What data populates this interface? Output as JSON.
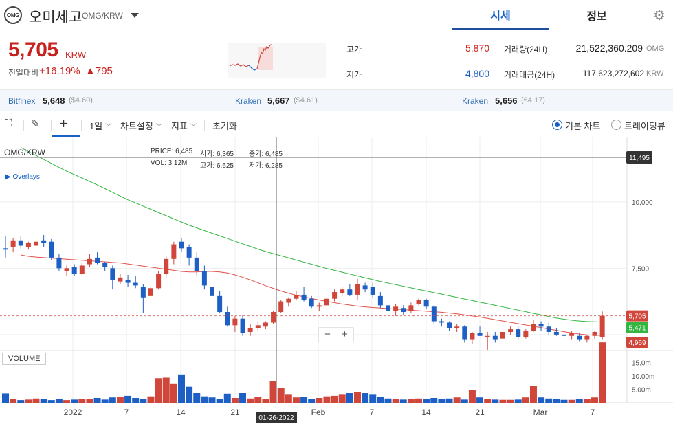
{
  "header": {
    "logo_text": "OMG",
    "coin_name": "오미세고",
    "pair": "OMG/KRW",
    "tabs": [
      {
        "label": "시세"
      },
      {
        "label": "정보"
      }
    ]
  },
  "summary": {
    "price": "5,705",
    "unit": "KRW",
    "change_label": "전일대비",
    "change_pct": "+16.19%",
    "change_abs": "▲795",
    "high_label": "고가",
    "high": "5,870",
    "low_label": "저가",
    "low": "4,800",
    "volume_label": "거래량(24H)",
    "volume": "21,522,360.209",
    "volume_unit": "OMG",
    "amount_label": "거래대금(24H)",
    "amount": "117,623,272,602",
    "amount_unit": "KRW"
  },
  "exchanges": [
    {
      "name": "Bitfinex",
      "price": "5,648",
      "usd": "($4.60)"
    },
    {
      "name": "Kraken",
      "price": "5,667",
      "usd": "($4.61)"
    },
    {
      "name": "Kraken",
      "price": "5,656",
      "usd": "(€4.17)"
    }
  ],
  "toolbar": {
    "interval": "1일",
    "chart_settings": "차트설정",
    "indicators": "지표",
    "reset": "초기화",
    "basic_chart": "기본 차트",
    "trading_view": "트레이딩뷰"
  },
  "chart": {
    "symbol": "OMG/KRW",
    "overlays_label": "Overlays",
    "volume_label": "VOLUME",
    "info": {
      "price_label": "PRICE:",
      "price": "6,485",
      "open_label": "시가:",
      "open": "6,365",
      "close_label": "종가:",
      "close": "6,485",
      "vol_label": "VOL:",
      "vol": "3.12M",
      "high_label": "고가:",
      "high": "6,625",
      "low_label": "저가:",
      "low": "6,285"
    },
    "crosshair_price": "11,495",
    "crosshair_date": "01-26-2022",
    "price_ticks": [
      "10,000",
      "7,500"
    ],
    "volume_ticks": [
      "15.0m",
      "10.00m",
      "5.00m"
    ],
    "x_ticks": [
      "2022",
      "7",
      "14",
      "21",
      "Feb",
      "7",
      "14",
      "21",
      "Mar",
      "7"
    ],
    "last_price_label": "5,705",
    "ma_long_label": "5,471",
    "ma_short_label": "4,969",
    "zoom_out": "−",
    "zoom_in": "+",
    "colors": {
      "up": "#d0463b",
      "down": "#1d5fc4",
      "ma_long": "#33b540",
      "ma_short": "#e0504a"
    }
  },
  "chart_data": {
    "type": "candlestick",
    "symbol": "OMG/KRW",
    "y_range": [
      4400,
      12300
    ],
    "candles": [
      {
        "o": 8250,
        "h": 8700,
        "l": 7900,
        "c": 8200
      },
      {
        "o": 8300,
        "h": 8650,
        "l": 8100,
        "c": 8550
      },
      {
        "o": 8550,
        "h": 8700,
        "l": 8250,
        "c": 8350
      },
      {
        "o": 8300,
        "h": 8500,
        "l": 8200,
        "c": 8450
      },
      {
        "o": 8350,
        "h": 8600,
        "l": 8200,
        "c": 8500
      },
      {
        "o": 8550,
        "h": 8750,
        "l": 8300,
        "c": 8450
      },
      {
        "o": 8500,
        "h": 8600,
        "l": 7800,
        "c": 7900
      },
      {
        "o": 7900,
        "h": 8050,
        "l": 7400,
        "c": 7500
      },
      {
        "o": 7400,
        "h": 7600,
        "l": 7200,
        "c": 7500
      },
      {
        "o": 7550,
        "h": 7650,
        "l": 7200,
        "c": 7300
      },
      {
        "o": 7300,
        "h": 7700,
        "l": 7250,
        "c": 7600
      },
      {
        "o": 7650,
        "h": 8050,
        "l": 7550,
        "c": 7850
      },
      {
        "o": 7900,
        "h": 8100,
        "l": 7650,
        "c": 7700
      },
      {
        "o": 7700,
        "h": 7750,
        "l": 7400,
        "c": 7550
      },
      {
        "o": 7500,
        "h": 7600,
        "l": 6700,
        "c": 7050
      },
      {
        "o": 7000,
        "h": 7300,
        "l": 6900,
        "c": 7150
      },
      {
        "o": 7050,
        "h": 7250,
        "l": 6800,
        "c": 6950
      },
      {
        "o": 6950,
        "h": 7200,
        "l": 6750,
        "c": 6850
      },
      {
        "o": 6800,
        "h": 6900,
        "l": 5800,
        "c": 6400
      },
      {
        "o": 6450,
        "h": 6800,
        "l": 6200,
        "c": 6750
      },
      {
        "o": 6750,
        "h": 7400,
        "l": 6700,
        "c": 7300
      },
      {
        "o": 7300,
        "h": 7950,
        "l": 7150,
        "c": 7850
      },
      {
        "o": 7850,
        "h": 8500,
        "l": 7650,
        "c": 8400
      },
      {
        "o": 8500,
        "h": 8650,
        "l": 8100,
        "c": 8250
      },
      {
        "o": 8300,
        "h": 8400,
        "l": 7600,
        "c": 7900
      },
      {
        "o": 7900,
        "h": 8100,
        "l": 7200,
        "c": 7400
      },
      {
        "o": 7400,
        "h": 7600,
        "l": 6700,
        "c": 6850
      },
      {
        "o": 6800,
        "h": 7050,
        "l": 6300,
        "c": 6450
      },
      {
        "o": 6450,
        "h": 6650,
        "l": 5800,
        "c": 5850
      },
      {
        "o": 5850,
        "h": 6050,
        "l": 5300,
        "c": 5350
      },
      {
        "o": 5350,
        "h": 5700,
        "l": 5100,
        "c": 5600
      },
      {
        "o": 5600,
        "h": 5750,
        "l": 4950,
        "c": 5050
      },
      {
        "o": 5100,
        "h": 5400,
        "l": 4950,
        "c": 5250
      },
      {
        "o": 5250,
        "h": 5500,
        "l": 5150,
        "c": 5350
      },
      {
        "o": 5300,
        "h": 5500,
        "l": 5200,
        "c": 5450
      },
      {
        "o": 5450,
        "h": 5900,
        "l": 5400,
        "c": 5850
      },
      {
        "o": 5850,
        "h": 6300,
        "l": 5800,
        "c": 6250
      },
      {
        "o": 6200,
        "h": 6400,
        "l": 6050,
        "c": 6350
      },
      {
        "o": 6350,
        "h": 6625,
        "l": 6285,
        "c": 6485
      },
      {
        "o": 6500,
        "h": 6800,
        "l": 6250,
        "c": 6300
      },
      {
        "o": 6350,
        "h": 6450,
        "l": 6000,
        "c": 6050
      },
      {
        "o": 6050,
        "h": 6200,
        "l": 5900,
        "c": 6100
      },
      {
        "o": 6100,
        "h": 6400,
        "l": 6000,
        "c": 6350
      },
      {
        "o": 6350,
        "h": 6700,
        "l": 6250,
        "c": 6600
      },
      {
        "o": 6550,
        "h": 6800,
        "l": 6450,
        "c": 6700
      },
      {
        "o": 6700,
        "h": 6900,
        "l": 6450,
        "c": 6500
      },
      {
        "o": 6500,
        "h": 7100,
        "l": 6300,
        "c": 6900
      },
      {
        "o": 6850,
        "h": 6950,
        "l": 6600,
        "c": 6700
      },
      {
        "o": 6800,
        "h": 6950,
        "l": 6400,
        "c": 6500
      },
      {
        "o": 6450,
        "h": 6600,
        "l": 6000,
        "c": 6100
      },
      {
        "o": 6100,
        "h": 6250,
        "l": 5800,
        "c": 5900
      },
      {
        "o": 5900,
        "h": 6150,
        "l": 5700,
        "c": 6050
      },
      {
        "o": 6000,
        "h": 6100,
        "l": 5750,
        "c": 5850
      },
      {
        "o": 5900,
        "h": 6200,
        "l": 5800,
        "c": 6100
      },
      {
        "o": 6150,
        "h": 6350,
        "l": 6100,
        "c": 6300
      },
      {
        "o": 6300,
        "h": 6350,
        "l": 5950,
        "c": 6050
      },
      {
        "o": 6050,
        "h": 6100,
        "l": 5400,
        "c": 5500
      },
      {
        "o": 5500,
        "h": 5600,
        "l": 5300,
        "c": 5450
      },
      {
        "o": 5450,
        "h": 5500,
        "l": 5150,
        "c": 5250
      },
      {
        "o": 5250,
        "h": 5400,
        "l": 5100,
        "c": 5300
      },
      {
        "o": 5300,
        "h": 5350,
        "l": 4700,
        "c": 4800
      },
      {
        "o": 4800,
        "h": 5100,
        "l": 4650,
        "c": 5050
      },
      {
        "o": 5050,
        "h": 5300,
        "l": 4950,
        "c": 4950
      },
      {
        "o": 4900,
        "h": 5100,
        "l": 4400,
        "c": 4950
      },
      {
        "o": 4950,
        "h": 5100,
        "l": 4700,
        "c": 4800
      },
      {
        "o": 4850,
        "h": 5200,
        "l": 4800,
        "c": 5100
      },
      {
        "o": 5100,
        "h": 5300,
        "l": 5000,
        "c": 5200
      },
      {
        "o": 5200,
        "h": 5300,
        "l": 4800,
        "c": 4900
      },
      {
        "o": 4900,
        "h": 5200,
        "l": 4850,
        "c": 5150
      },
      {
        "o": 5150,
        "h": 5550,
        "l": 5100,
        "c": 5400
      },
      {
        "o": 5400,
        "h": 5500,
        "l": 5150,
        "c": 5300
      },
      {
        "o": 5300,
        "h": 5450,
        "l": 5000,
        "c": 5100
      },
      {
        "o": 5100,
        "h": 5250,
        "l": 4950,
        "c": 5000
      },
      {
        "o": 5000,
        "h": 5100,
        "l": 4850,
        "c": 4950
      },
      {
        "o": 4950,
        "h": 5150,
        "l": 4800,
        "c": 5050
      },
      {
        "o": 4950,
        "h": 5050,
        "l": 4750,
        "c": 4800
      },
      {
        "o": 4800,
        "h": 5000,
        "l": 4700,
        "c": 4950
      },
      {
        "o": 4950,
        "h": 5150,
        "l": 4850,
        "c": 5100
      },
      {
        "o": 4910,
        "h": 5870,
        "l": 4800,
        "c": 5705
      }
    ],
    "volume": [
      3.5,
      1.3,
      1,
      1.2,
      1.6,
      1.3,
      1,
      1.5,
      1,
      1.2,
      1.3,
      1.5,
      1.8,
      1.2,
      2,
      2.2,
      2.6,
      1.8,
      1.4,
      2.4,
      9.2,
      9.4,
      7,
      10.6,
      6,
      3.6,
      2.4,
      2,
      1.5,
      3.4,
      1.8,
      3.6,
      1.6,
      2.2,
      1.5,
      8.2,
      5.4,
      3,
      2,
      2.2,
      1.4,
      1.8,
      2.4,
      2.6,
      3,
      3.6,
      4,
      3.6,
      3,
      2.2,
      1.6,
      1.4,
      1.2,
      1.5,
      1.6,
      1.3,
      1.8,
      1.4,
      1.6,
      2,
      1.2,
      4.8,
      2,
      1.4,
      1.2,
      1.1,
      1.1,
      1.2,
      2,
      6.4,
      2,
      1.6,
      1.3,
      1.1,
      1.1,
      1.3,
      1.5,
      2,
      22.6
    ],
    "ma_long": [
      12050,
      11900,
      11750,
      11600,
      11450,
      11300,
      11160,
      11030,
      10900,
      10770,
      10640,
      10500,
      10360,
      10220,
      10080,
      9960,
      9840,
      9720,
      9600,
      9480,
      9360,
      9240,
      9120,
      9020,
      8920,
      8820,
      8720,
      8620,
      8520,
      8420,
      8320,
      8220,
      8130,
      8050,
      7970,
      7890,
      7810,
      7730,
      7650,
      7570,
      7490,
      7420,
      7350,
      7280,
      7210,
      7140,
      7070,
      7000,
      6940,
      6880,
      6820,
      6760,
      6700,
      6640,
      6580,
      6520,
      6460,
      6400,
      6340,
      6280,
      6220,
      6160,
      6100,
      6040,
      5980,
      5920,
      5860,
      5800,
      5740,
      5680,
      5620,
      5580,
      5540,
      5510,
      5490,
      5480,
      5471
    ],
    "ma_short": [
      8000,
      7950,
      7920,
      7900,
      7880,
      7860,
      7840,
      7820,
      7800,
      7780,
      7760,
      7740,
      7720,
      7700,
      7660,
      7620,
      7580,
      7540,
      7500,
      7460,
      7420,
      7380,
      7360,
      7360,
      7380,
      7380,
      7360,
      7320,
      7250,
      7160,
      7060,
      6950,
      6840,
      6740,
      6640,
      6560,
      6480,
      6420,
      6360,
      6300,
      6250,
      6200,
      6150,
      6110,
      6070,
      6040,
      6020,
      6000,
      5980,
      5960,
      5940,
      5920,
      5900,
      5880,
      5860,
      5840,
      5810,
      5780,
      5740,
      5700,
      5660,
      5610,
      5560,
      5510,
      5460,
      5410,
      5360,
      5310,
      5260,
      5210,
      5160,
      5110,
      5060,
      5020,
      4990,
      4975,
      4969
    ]
  }
}
